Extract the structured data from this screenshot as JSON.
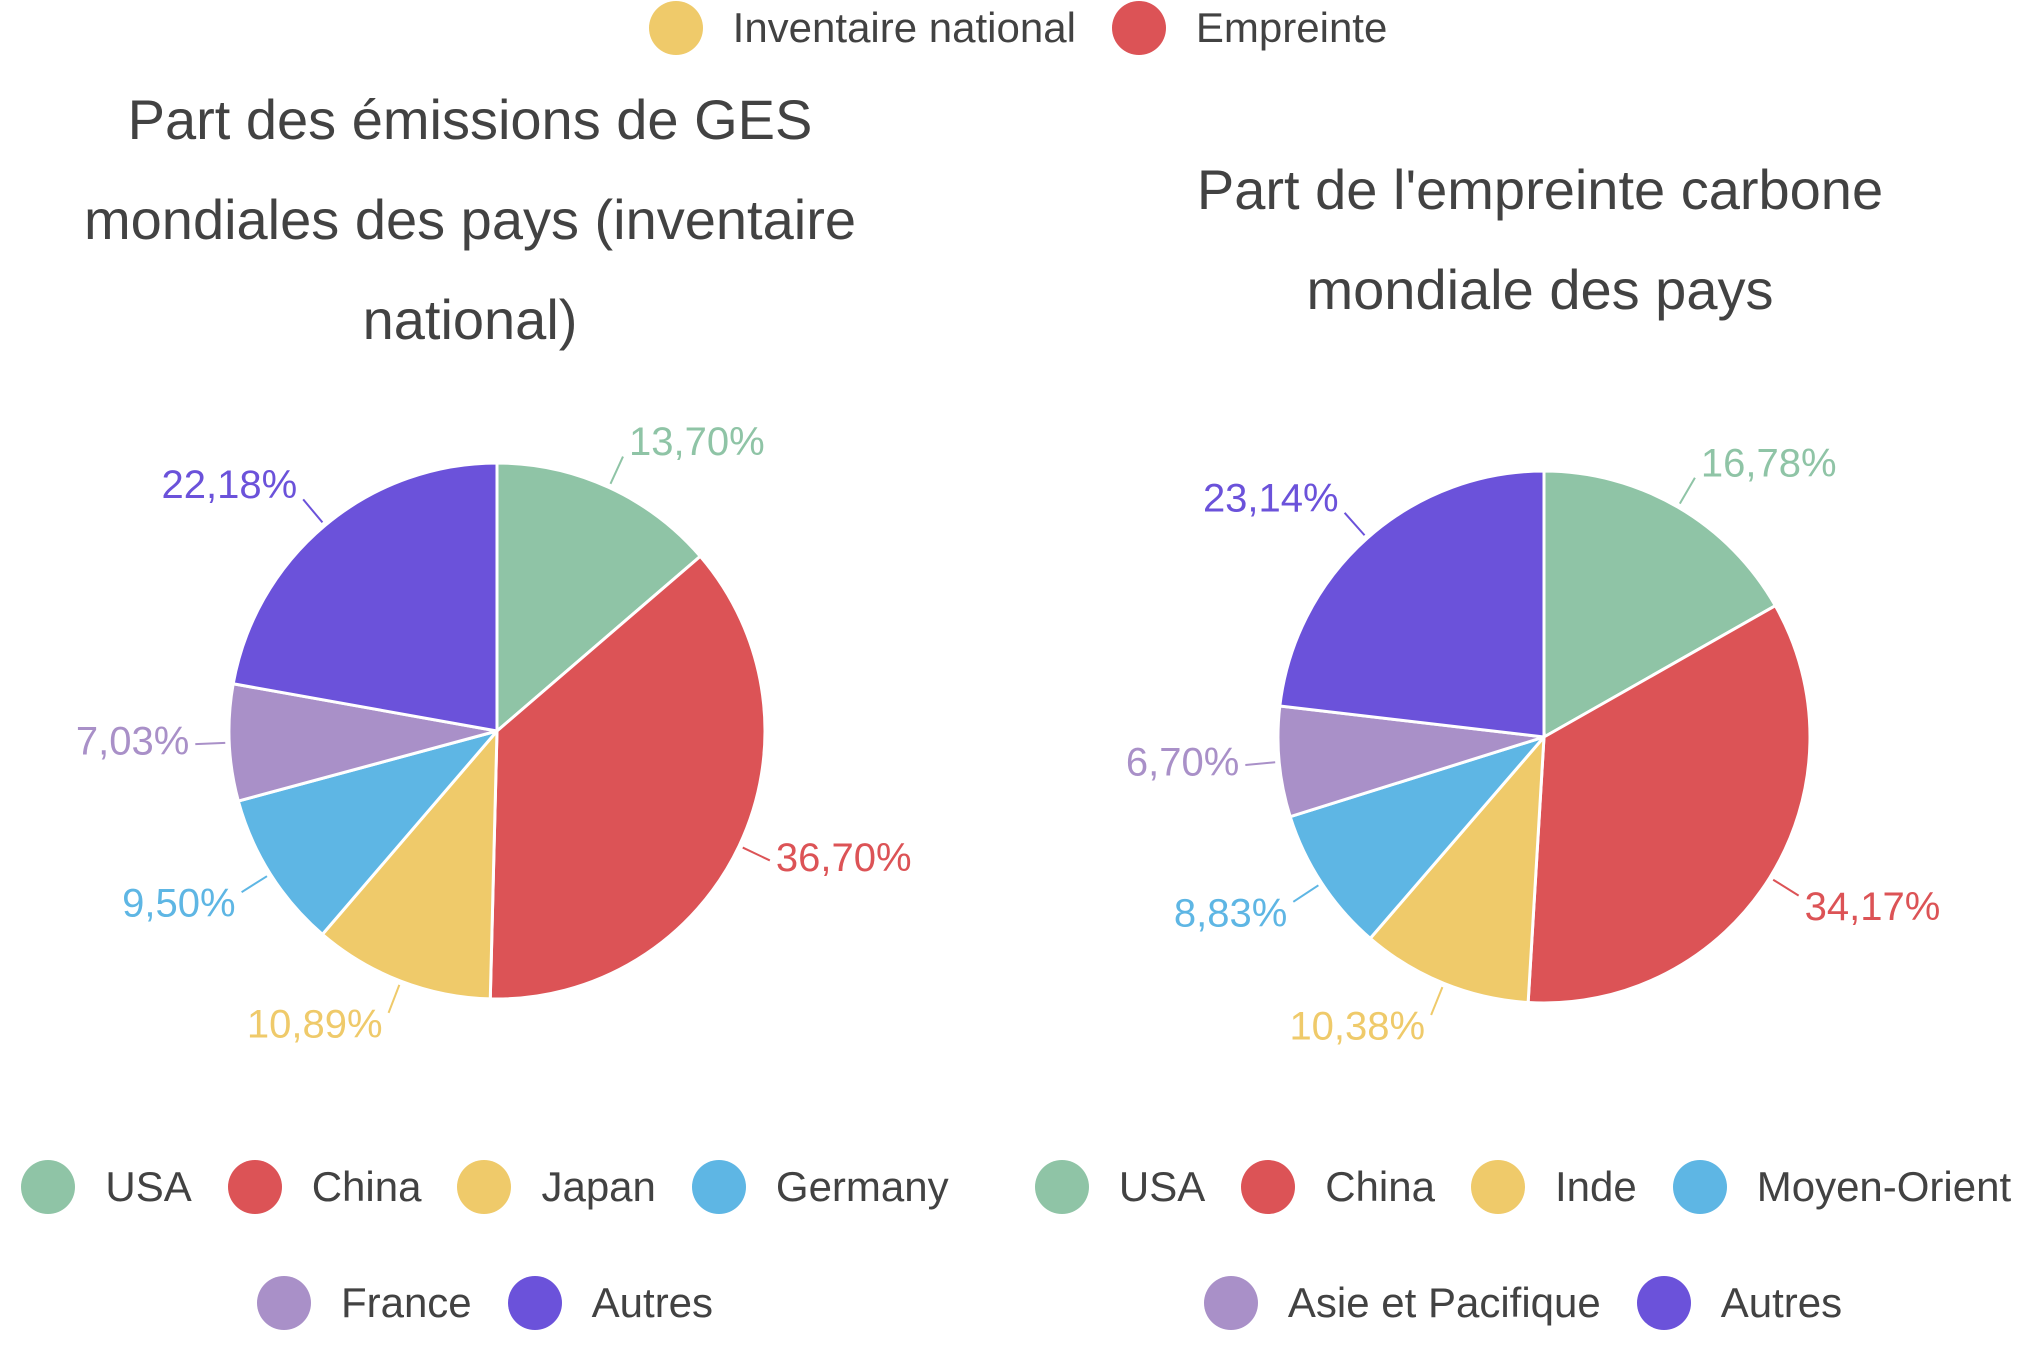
{
  "legend": [
    {
      "name": "Inventaire national",
      "color": "#efca6a"
    },
    {
      "name": "Empreinte",
      "color": "#dc5356"
    }
  ],
  "chart_data": [
    {
      "type": "pie",
      "title": "Part des émissions de GES mondiales des pays (inventaire national)",
      "categories": [
        "USA",
        "China",
        "Japan",
        "Germany",
        "France",
        "Autres"
      ],
      "values": [
        13.7,
        36.7,
        10.89,
        9.5,
        7.03,
        22.18
      ],
      "value_labels": [
        "13,70%",
        "36,70%",
        "10,89%",
        "9,50%",
        "7,03%",
        "22,18%"
      ],
      "colors": [
        "#8fc4a6",
        "#dc5356",
        "#efca6a",
        "#5eb6e4",
        "#a990c8",
        "#6b52da"
      ]
    },
    {
      "type": "pie",
      "title": "Part de l'empreinte carbone mondiale des pays",
      "categories": [
        "USA",
        "China",
        "Inde",
        "Moyen-Orient",
        "Asie et Pacifique",
        "Autres"
      ],
      "values": [
        16.78,
        34.17,
        10.38,
        8.83,
        6.7,
        23.14
      ],
      "value_labels": [
        "16,78%",
        "34,17%",
        "10,38%",
        "8,83%",
        "6,70%",
        "23,14%"
      ],
      "colors": [
        "#8fc4a6",
        "#dc5356",
        "#efca6a",
        "#5eb6e4",
        "#a990c8",
        "#6b52da"
      ]
    }
  ]
}
